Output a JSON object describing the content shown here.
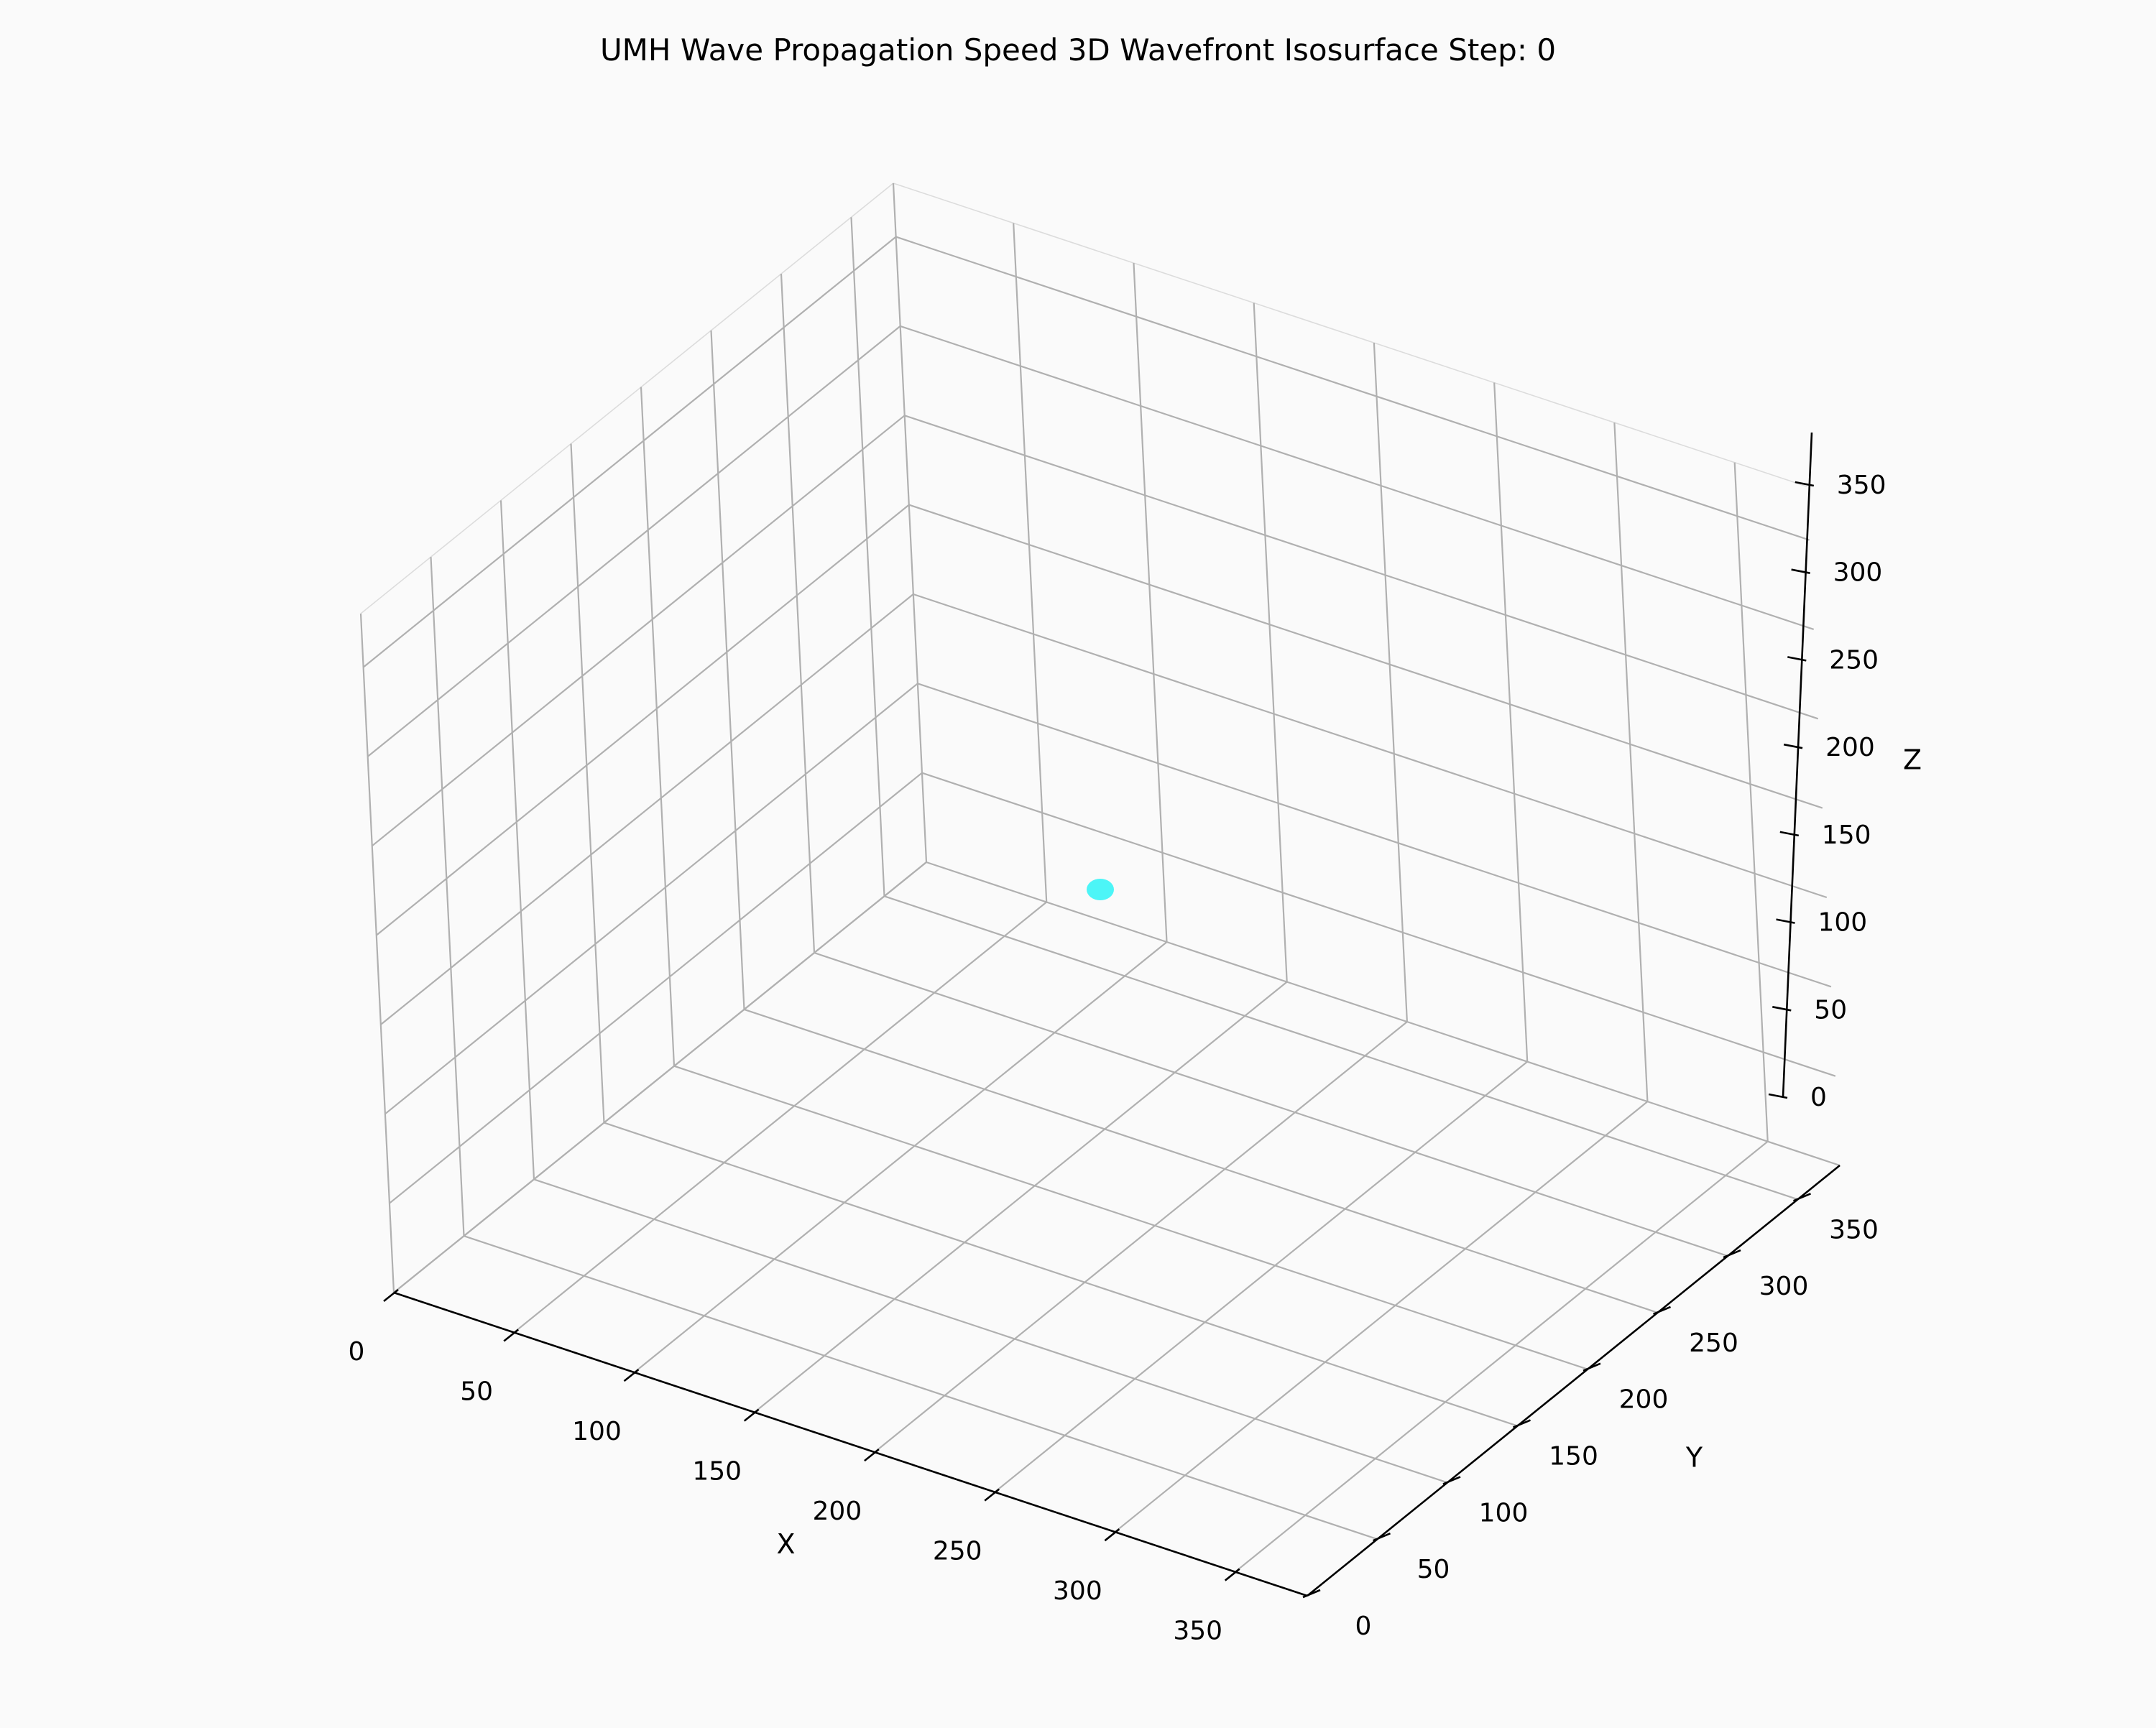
{
  "chart_data": {
    "type": "scatter",
    "projection": "3d",
    "title": "UMH Wave Propagation Speed 3D Wavefront Isosurface Step: 0",
    "xlabel": "X",
    "ylabel": "Y",
    "zlabel": "Z",
    "xlim": [
      0,
      380
    ],
    "ylim": [
      0,
      380
    ],
    "zlim": [
      0,
      380
    ],
    "xticks": [
      0,
      50,
      100,
      150,
      200,
      250,
      300,
      350
    ],
    "yticks": [
      0,
      50,
      100,
      150,
      200,
      250,
      300,
      350
    ],
    "zticks": [
      0,
      50,
      100,
      150,
      200,
      250,
      300,
      350
    ],
    "x_tick_labels": [
      "0",
      "50",
      "100",
      "150",
      "200",
      "250",
      "300",
      "350"
    ],
    "y_tick_labels": [
      "0",
      "50",
      "100",
      "150",
      "200",
      "250",
      "300",
      "350"
    ],
    "z_tick_labels": [
      "0",
      "50",
      "100",
      "150",
      "200",
      "250",
      "300",
      "350"
    ],
    "grid": true,
    "points": [
      {
        "x": 190,
        "y": 190,
        "z": 190
      }
    ],
    "point_color": "#4cf5f7"
  }
}
